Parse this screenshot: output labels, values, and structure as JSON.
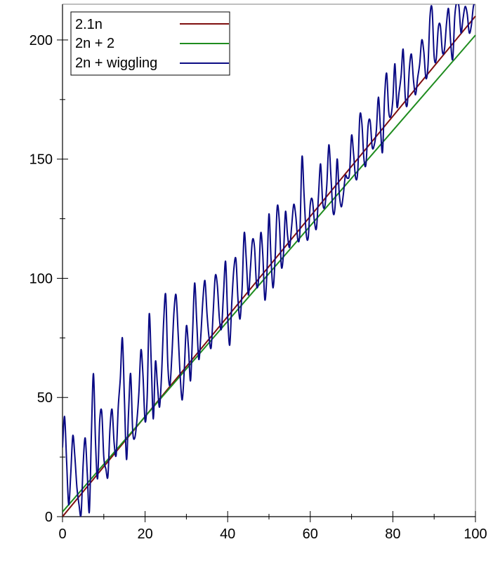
{
  "chart_data": {
    "type": "line",
    "title": "",
    "xlabel": "",
    "ylabel": "",
    "xlim": [
      0,
      100
    ],
    "ylim": [
      0,
      215
    ],
    "grid": false,
    "legend_position": "top-left",
    "x_ticks_major": [
      0,
      20,
      40,
      60,
      80,
      100
    ],
    "x_ticks_minor": [
      10,
      30,
      50,
      70,
      90
    ],
    "y_ticks_major": [
      0,
      50,
      100,
      150,
      200
    ],
    "y_ticks_minor": [
      25,
      75,
      125,
      175
    ],
    "series": [
      {
        "name": "2.1n",
        "color": "#7f0f0f",
        "x": [
          0,
          100
        ],
        "y": [
          0,
          210
        ]
      },
      {
        "name": "2n + 2",
        "color": "#1f8c1f",
        "x": [
          0,
          100
        ],
        "y": [
          2,
          202
        ]
      },
      {
        "name": "2n + wiggling",
        "color": "#0a0a84",
        "x": [
          0,
          0.5,
          1,
          1.5,
          2,
          2.5,
          3,
          3.5,
          4,
          4.5,
          5,
          5.5,
          6,
          6.5,
          7,
          7.5,
          8,
          8.5,
          9,
          9.5,
          10,
          10.5,
          11,
          11.5,
          12,
          12.5,
          13,
          13.5,
          14,
          14.5,
          15,
          15.5,
          16,
          16.5,
          17,
          17.5,
          18,
          18.5,
          19,
          19.5,
          20,
          20.5,
          21,
          21.5,
          22,
          22.5,
          23,
          23.5,
          24,
          24.5,
          25,
          25.5,
          26,
          26.5,
          27,
          27.5,
          28,
          28.5,
          29,
          29.5,
          30,
          30.5,
          31,
          31.5,
          32,
          32.5,
          33,
          33.5,
          34,
          34.5,
          35,
          35.5,
          36,
          36.5,
          37,
          37.5,
          38,
          38.5,
          39,
          39.5,
          40,
          40.5,
          41,
          41.5,
          42,
          42.5,
          43,
          43.5,
          44,
          44.5,
          45,
          45.5,
          46,
          46.5,
          47,
          47.5,
          48,
          48.5,
          49,
          49.5,
          50,
          50.5,
          51,
          51.5,
          52,
          52.5,
          53,
          53.5,
          54,
          54.5,
          55,
          55.5,
          56,
          56.5,
          57,
          57.5,
          58,
          58.5,
          59,
          59.5,
          60,
          60.5,
          61,
          61.5,
          62,
          62.5,
          63,
          63.5,
          64,
          64.5,
          65,
          65.5,
          66,
          66.5,
          67,
          67.5,
          68,
          68.5,
          69,
          69.5,
          70,
          70.5,
          71,
          71.5,
          72,
          72.5,
          73,
          73.5,
          74,
          74.5,
          75,
          75.5,
          76,
          76.5,
          77,
          77.5,
          78,
          78.5,
          79,
          79.5,
          80,
          80.5,
          81,
          81.5,
          82,
          82.5,
          83,
          83.5,
          84,
          84.5,
          85,
          85.5,
          86,
          86.5,
          87,
          87.5,
          88,
          88.5,
          89,
          89.5,
          90,
          90.5,
          91,
          91.5,
          92,
          92.5,
          93,
          93.5,
          94,
          94.5,
          95,
          95.5,
          96,
          96.5,
          97,
          97.5,
          98,
          98.5,
          99,
          99.5,
          100
        ],
        "y": [
          29,
          42,
          23,
          5,
          18,
          34,
          25,
          12,
          5,
          1,
          22,
          33,
          18,
          2,
          35,
          60,
          31,
          16,
          40,
          44,
          25,
          20,
          17,
          37,
          45,
          31,
          26,
          46,
          58,
          75,
          49,
          24,
          44,
          60,
          36,
          33,
          40,
          52,
          70,
          59,
          40,
          50,
          85,
          64,
          41,
          65,
          55,
          46,
          60,
          82,
          93,
          64,
          55,
          68,
          86,
          93,
          77,
          59,
          49,
          62,
          80,
          71,
          57,
          77,
          98,
          82,
          66,
          76,
          91,
          99,
          85,
          75,
          71,
          86,
          101,
          97,
          83,
          79,
          94,
          107,
          84,
          72,
          90,
          104,
          108,
          91,
          83,
          96,
          119,
          108,
          93,
          104,
          116,
          113,
          97,
          100,
          119,
          110,
          91,
          102,
          127,
          108,
          96,
          109,
          130,
          124,
          105,
          110,
          128,
          118,
          113,
          122,
          131,
          126,
          116,
          120,
          151,
          135,
          119,
          117,
          131,
          133,
          124,
          121,
          135,
          148,
          132,
          130,
          139,
          156,
          143,
          128,
          130,
          150,
          136,
          130,
          135,
          143,
          142,
          144,
          160,
          152,
          142,
          145,
          168,
          165,
          150,
          148,
          164,
          166,
          155,
          156,
          162,
          176,
          163,
          153,
          176,
          186,
          170,
          168,
          175,
          190,
          172,
          178,
          185,
          196,
          176,
          173,
          188,
          194,
          183,
          177,
          184,
          190,
          200,
          195,
          184,
          189,
          210,
          213,
          193,
          192,
          205,
          206,
          195,
          196,
          207,
          213,
          199,
          192,
          210,
          216,
          214,
          203,
          209,
          214,
          211,
          203,
          206,
          214,
          216
        ]
      }
    ]
  }
}
